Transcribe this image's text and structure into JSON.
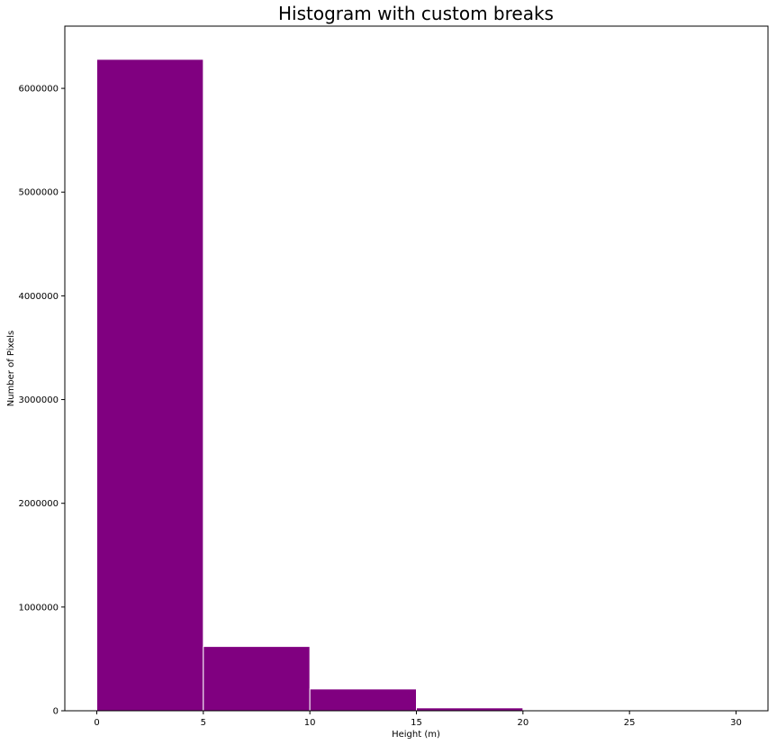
{
  "chart_data": {
    "type": "bar",
    "title": "Histogram with custom breaks",
    "xlabel": "Height (m)",
    "ylabel": "Number of Pixels",
    "bar_color": "#800080",
    "edge_color": "#ffffff",
    "xlim": [
      -1.5,
      31.5
    ],
    "ylim": [
      0,
      6600000
    ],
    "bins": [
      {
        "start": 0,
        "end": 5,
        "value": 6280000
      },
      {
        "start": 5,
        "end": 10,
        "value": 620000
      },
      {
        "start": 10,
        "end": 15,
        "value": 210000
      },
      {
        "start": 15,
        "end": 20,
        "value": 28000
      },
      {
        "start": 20,
        "end": 30,
        "value": 0
      }
    ],
    "x_ticks": [
      {
        "value": 0,
        "label": "0"
      },
      {
        "value": 5,
        "label": "5"
      },
      {
        "value": 10,
        "label": "10"
      },
      {
        "value": 15,
        "label": "15"
      },
      {
        "value": 20,
        "label": "20"
      },
      {
        "value": 25,
        "label": "25"
      },
      {
        "value": 30,
        "label": "30"
      }
    ],
    "y_ticks": [
      {
        "value": 0,
        "label": "0"
      },
      {
        "value": 1000000,
        "label": "1000000"
      },
      {
        "value": 2000000,
        "label": "2000000"
      },
      {
        "value": 3000000,
        "label": "3000000"
      },
      {
        "value": 4000000,
        "label": "4000000"
      },
      {
        "value": 5000000,
        "label": "5000000"
      },
      {
        "value": 6000000,
        "label": "6000000"
      }
    ],
    "grid": false,
    "legend": "none"
  }
}
